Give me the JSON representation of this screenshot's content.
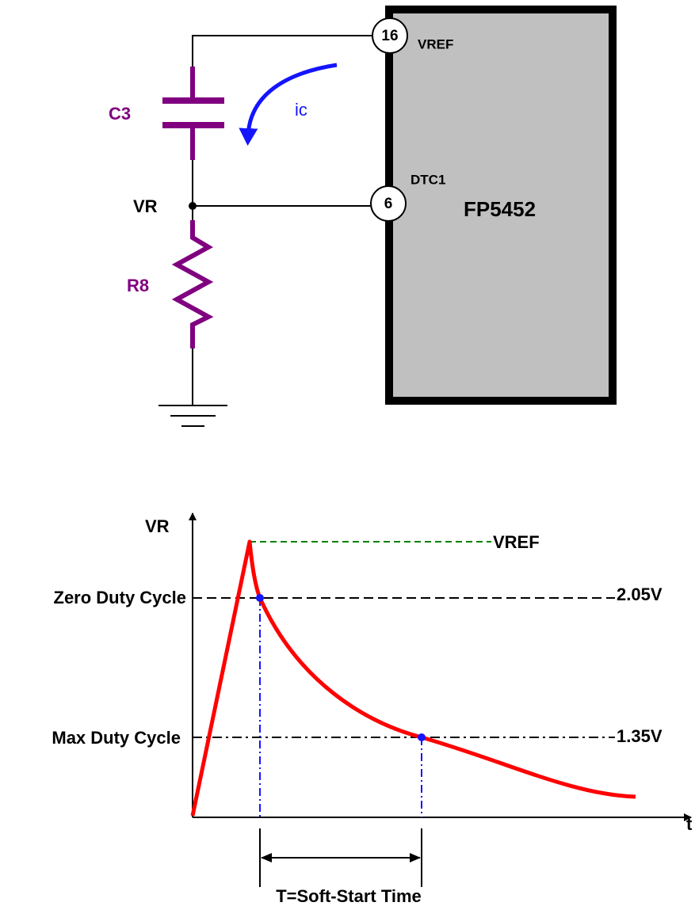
{
  "circuit": {
    "pins": [
      {
        "number": "16",
        "label": "VREF"
      },
      {
        "number": "6",
        "label": "DTC1"
      }
    ],
    "chip": "FP5452",
    "capacitor": "C3",
    "current": "ic",
    "node": "VR",
    "resistor": "R8"
  },
  "graph": {
    "y_axis": "VR",
    "x_axis": "t",
    "reference": "VREF",
    "levels": [
      {
        "name": "Zero Duty Cycle",
        "value": "2.05V"
      },
      {
        "name": "Max Duty Cycle",
        "value": "1.35V"
      }
    ],
    "interval": "T=Soft-Start Time"
  }
}
